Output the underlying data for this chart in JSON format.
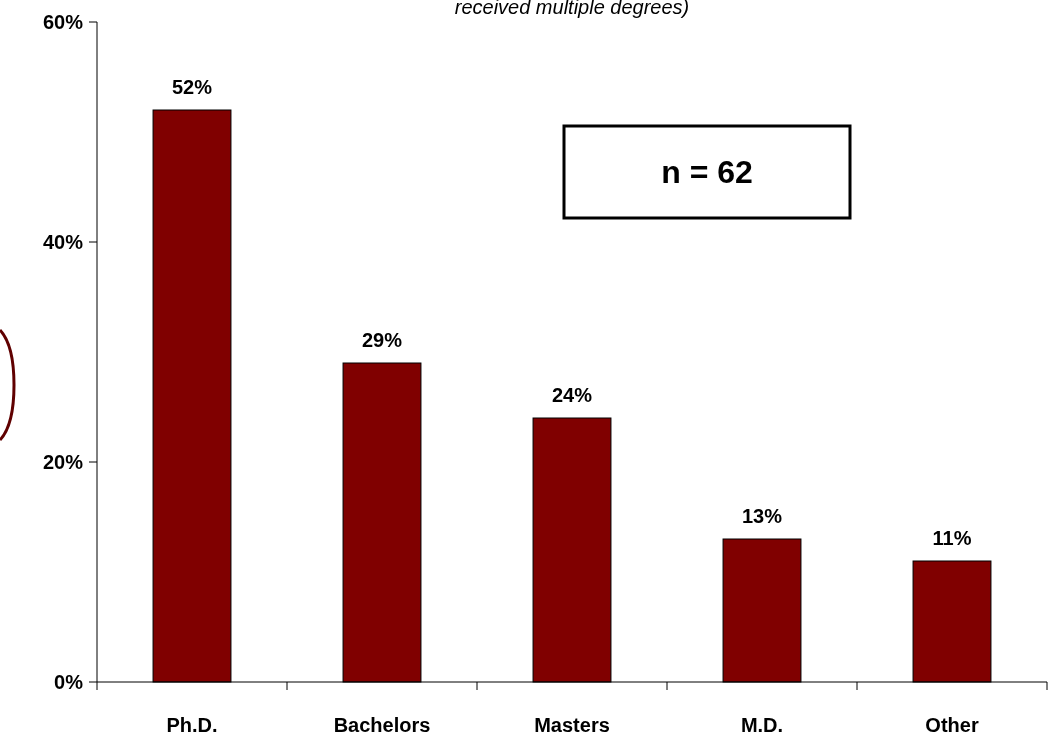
{
  "chart_data": {
    "type": "bar",
    "subtitle": "received multiple degrees)",
    "categories": [
      "Ph.D.",
      "Bachelors",
      "Masters",
      "M.D.",
      "Other"
    ],
    "values": [
      52,
      29,
      24,
      13,
      11
    ],
    "value_labels": [
      "52%",
      "29%",
      "24%",
      "13%",
      "11%"
    ],
    "color": "#800000",
    "ylim": [
      0,
      60
    ],
    "yticks": [
      {
        "value": 0,
        "label": "0%"
      },
      {
        "value": 20,
        "label": "20%"
      },
      {
        "value": 40,
        "label": "40%"
      },
      {
        "value": 60,
        "label": "60%"
      }
    ],
    "grid": false,
    "annotations": [
      "n = 62"
    ]
  }
}
